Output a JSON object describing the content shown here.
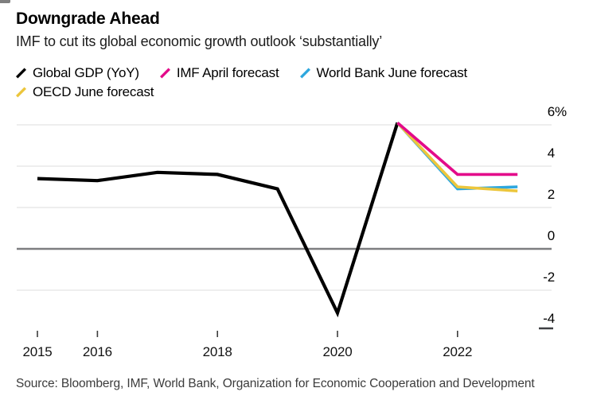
{
  "chart_data": {
    "type": "line",
    "title": "Downgrade Ahead",
    "subtitle": "IMF to cut its global economic growth outlook ‘substantially’",
    "source": "Source: Bloomberg, IMF, World Bank, Organization for Economic Cooperation and Development",
    "grid": "horizontal",
    "axis_side": "right",
    "legend_position": "top",
    "xlim": [
      2014.65,
      2023.6
    ],
    "ylim": [
      -4.3,
      6.5
    ],
    "unit": "%",
    "yticks": [
      {
        "value": 6,
        "label": "6",
        "suffix": "%",
        "line": "light"
      },
      {
        "value": 4,
        "label": "4",
        "line": "light"
      },
      {
        "value": 2,
        "label": "2",
        "line": "light"
      },
      {
        "value": 0,
        "label": "0",
        "line": "zero"
      },
      {
        "value": -2,
        "label": "-2",
        "line": "light"
      },
      {
        "value": -4,
        "label": "-4",
        "line": "dash"
      }
    ],
    "xticks": [
      {
        "value": 2015,
        "label": "2015"
      },
      {
        "value": 2016,
        "label": "2016"
      },
      {
        "value": 2018,
        "label": "2018"
      },
      {
        "value": 2020,
        "label": "2020"
      },
      {
        "value": 2022,
        "label": "2022"
      }
    ],
    "series": [
      {
        "name": "Global GDP (YoY)",
        "color": "#000000",
        "x": [
          2015,
          2016,
          2017,
          2018,
          2019,
          2020,
          2021
        ],
        "values": [
          3.4,
          3.3,
          3.7,
          3.6,
          2.9,
          -3.1,
          6.1
        ]
      },
      {
        "name": "World Bank June forecast",
        "color": "#2ea7de",
        "x": [
          2021,
          2022,
          2023
        ],
        "values": [
          6.1,
          2.9,
          3.0
        ]
      },
      {
        "name": "OECD June forecast",
        "color": "#ecc63c",
        "x": [
          2021,
          2022,
          2023
        ],
        "values": [
          6.1,
          3.0,
          2.8
        ]
      },
      {
        "name": "IMF April forecast",
        "color": "#e30a8a",
        "x": [
          2021,
          2022,
          2023
        ],
        "values": [
          6.1,
          3.6,
          3.6
        ]
      }
    ],
    "legend": [
      {
        "label": "Global GDP (YoY)",
        "color": "#000000"
      },
      {
        "label": "IMF April forecast",
        "color": "#e30a8a"
      },
      {
        "label": "World Bank June forecast",
        "color": "#2ea7de"
      },
      {
        "label": "OECD June forecast",
        "color": "#ecc63c"
      }
    ],
    "colors": {
      "gridline": "#e3e3e3",
      "zero_line": "#7d7e80",
      "tick": "#3c3c3c",
      "subtitle_text": "#1c1c1c",
      "source_text": "#3c3c3c"
    }
  }
}
